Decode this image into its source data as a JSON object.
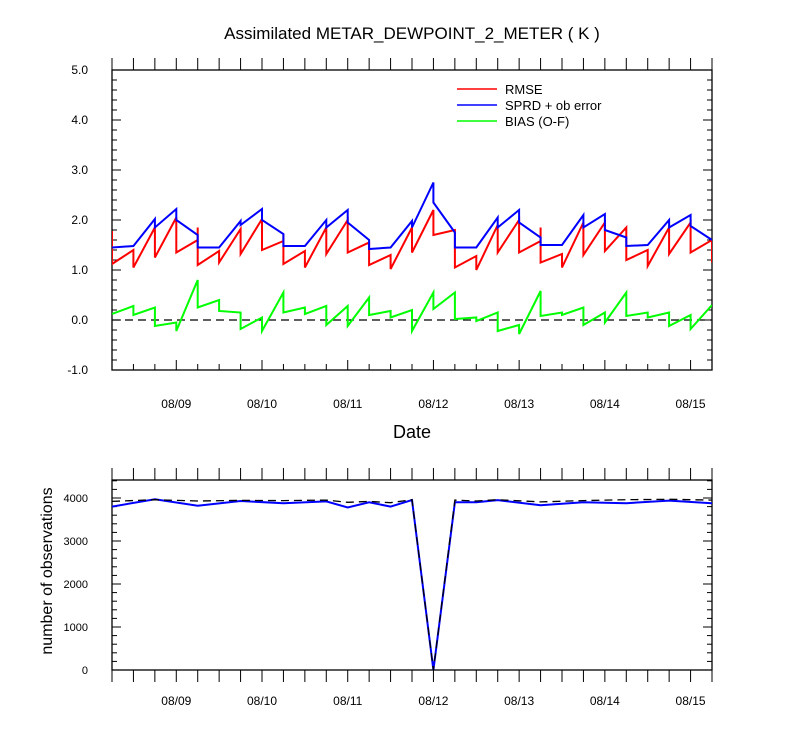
{
  "chart_data": [
    {
      "type": "line",
      "title": "Assimilated METAR_DEWPOINT_2_METER ( K )",
      "xlabel": "Date",
      "ylabel": "",
      "ylim": [
        -1.0,
        5.0
      ],
      "yticks": [
        "-1.0",
        "0.0",
        "1.0",
        "2.0",
        "3.0",
        "4.0",
        "5.0"
      ],
      "xlim": [
        "08/08 06:00",
        "08/15 06:00"
      ],
      "xticks": [
        "08/09",
        "08/10",
        "08/11",
        "08/12",
        "08/13",
        "08/14",
        "08/15"
      ],
      "legend_position": "top-right",
      "zero_line": "dashed",
      "series": [
        {
          "name": "RMSE",
          "color": "#ff0000",
          "points": [
            [
              0.0,
              1.78
            ],
            [
              0.0,
              1.12
            ],
            [
              0.25,
              1.4
            ],
            [
              0.25,
              1.05
            ],
            [
              0.5,
              1.85
            ],
            [
              0.5,
              1.25
            ],
            [
              0.75,
              2.05
            ],
            [
              0.75,
              1.35
            ],
            [
              1.0,
              1.6
            ],
            [
              1.0,
              1.85
            ],
            [
              1.0,
              1.1
            ],
            [
              1.25,
              1.38
            ],
            [
              1.25,
              1.15
            ],
            [
              1.5,
              1.82
            ],
            [
              1.5,
              1.32
            ],
            [
              1.75,
              2.02
            ],
            [
              1.75,
              1.4
            ],
            [
              2.0,
              1.58
            ],
            [
              2.0,
              1.72
            ],
            [
              2.0,
              1.12
            ],
            [
              2.25,
              1.38
            ],
            [
              2.25,
              1.05
            ],
            [
              2.5,
              1.85
            ],
            [
              2.5,
              1.32
            ],
            [
              2.75,
              2.0
            ],
            [
              2.75,
              1.35
            ],
            [
              3.0,
              1.55
            ],
            [
              3.0,
              1.1
            ],
            [
              3.25,
              1.3
            ],
            [
              3.25,
              1.02
            ],
            [
              3.5,
              1.85
            ],
            [
              3.5,
              1.35
            ],
            [
              3.75,
              2.2
            ],
            [
              3.75,
              1.7
            ],
            [
              4.0,
              1.8
            ],
            [
              4.0,
              1.05
            ],
            [
              4.25,
              1.28
            ],
            [
              4.25,
              1.0
            ],
            [
              4.5,
              1.9
            ],
            [
              4.5,
              1.35
            ],
            [
              4.75,
              2.0
            ],
            [
              4.75,
              1.35
            ],
            [
              5.0,
              1.58
            ],
            [
              5.0,
              1.85
            ],
            [
              5.0,
              1.15
            ],
            [
              5.25,
              1.32
            ],
            [
              5.25,
              1.05
            ],
            [
              5.5,
              1.95
            ],
            [
              5.5,
              1.3
            ],
            [
              5.75,
              1.95
            ],
            [
              5.75,
              1.38
            ],
            [
              6.0,
              1.85
            ],
            [
              6.0,
              1.2
            ],
            [
              6.25,
              1.4
            ],
            [
              6.25,
              1.08
            ],
            [
              6.5,
              1.85
            ],
            [
              6.5,
              1.32
            ],
            [
              6.75,
              1.95
            ],
            [
              6.75,
              1.35
            ],
            [
              7.0,
              1.6
            ],
            [
              7.0,
              1.15
            ]
          ]
        },
        {
          "name": "SPRD + ob error",
          "color": "#0000ff",
          "points": [
            [
              0.0,
              1.45
            ],
            [
              0.25,
              1.48
            ],
            [
              0.5,
              2.02
            ],
            [
              0.5,
              1.85
            ],
            [
              0.75,
              2.22
            ],
            [
              0.75,
              2.0
            ],
            [
              1.0,
              1.7
            ],
            [
              1.0,
              1.45
            ],
            [
              1.25,
              1.45
            ],
            [
              1.5,
              1.98
            ],
            [
              1.5,
              1.9
            ],
            [
              1.75,
              2.22
            ],
            [
              1.75,
              2.0
            ],
            [
              2.0,
              1.72
            ],
            [
              2.0,
              1.48
            ],
            [
              2.25,
              1.48
            ],
            [
              2.5,
              2.0
            ],
            [
              2.5,
              1.85
            ],
            [
              2.75,
              2.2
            ],
            [
              2.75,
              1.95
            ],
            [
              3.0,
              1.6
            ],
            [
              3.0,
              1.42
            ],
            [
              3.25,
              1.45
            ],
            [
              3.5,
              1.98
            ],
            [
              3.5,
              1.85
            ],
            [
              3.75,
              2.75
            ],
            [
              3.75,
              2.35
            ],
            [
              4.0,
              1.75
            ],
            [
              4.0,
              1.45
            ],
            [
              4.25,
              1.45
            ],
            [
              4.5,
              2.05
            ],
            [
              4.5,
              1.85
            ],
            [
              4.75,
              2.2
            ],
            [
              4.75,
              1.95
            ],
            [
              5.0,
              1.65
            ],
            [
              5.0,
              1.5
            ],
            [
              5.25,
              1.5
            ],
            [
              5.5,
              2.1
            ],
            [
              5.5,
              1.85
            ],
            [
              5.75,
              2.12
            ],
            [
              5.75,
              1.8
            ],
            [
              6.0,
              1.65
            ],
            [
              6.0,
              1.48
            ],
            [
              6.25,
              1.5
            ],
            [
              6.5,
              2.0
            ],
            [
              6.5,
              1.85
            ],
            [
              6.75,
              2.1
            ],
            [
              6.75,
              1.88
            ],
            [
              7.0,
              1.6
            ]
          ]
        },
        {
          "name": "BIAS (O-F)",
          "color": "#00ff00",
          "points": [
            [
              0.0,
              0.12
            ],
            [
              0.25,
              0.28
            ],
            [
              0.25,
              0.1
            ],
            [
              0.5,
              0.25
            ],
            [
              0.5,
              -0.12
            ],
            [
              0.75,
              -0.05
            ],
            [
              0.75,
              -0.22
            ],
            [
              1.0,
              0.8
            ],
            [
              1.0,
              0.25
            ],
            [
              1.25,
              0.4
            ],
            [
              1.25,
              0.18
            ],
            [
              1.5,
              0.15
            ],
            [
              1.5,
              -0.18
            ],
            [
              1.75,
              0.05
            ],
            [
              1.75,
              -0.22
            ],
            [
              2.0,
              0.55
            ],
            [
              2.0,
              0.15
            ],
            [
              2.25,
              0.25
            ],
            [
              2.25,
              0.12
            ],
            [
              2.5,
              0.28
            ],
            [
              2.5,
              -0.1
            ],
            [
              2.75,
              0.28
            ],
            [
              2.75,
              -0.12
            ],
            [
              3.0,
              0.45
            ],
            [
              3.0,
              0.1
            ],
            [
              3.25,
              0.18
            ],
            [
              3.25,
              0.05
            ],
            [
              3.5,
              0.2
            ],
            [
              3.5,
              -0.22
            ],
            [
              3.75,
              0.55
            ],
            [
              3.75,
              0.22
            ],
            [
              4.0,
              0.55
            ],
            [
              4.0,
              0.02
            ],
            [
              4.25,
              0.05
            ],
            [
              4.25,
              -0.02
            ],
            [
              4.5,
              0.15
            ],
            [
              4.5,
              -0.22
            ],
            [
              4.75,
              -0.1
            ],
            [
              4.75,
              -0.28
            ],
            [
              5.0,
              0.58
            ],
            [
              5.0,
              0.08
            ],
            [
              5.25,
              0.15
            ],
            [
              5.25,
              0.1
            ],
            [
              5.5,
              0.25
            ],
            [
              5.5,
              -0.1
            ],
            [
              5.75,
              0.15
            ],
            [
              5.75,
              -0.05
            ],
            [
              6.0,
              0.55
            ],
            [
              6.0,
              0.08
            ],
            [
              6.25,
              0.15
            ],
            [
              6.25,
              0.05
            ],
            [
              6.5,
              0.15
            ],
            [
              6.5,
              -0.12
            ],
            [
              6.75,
              0.1
            ],
            [
              6.75,
              -0.18
            ],
            [
              7.0,
              0.3
            ]
          ]
        }
      ]
    },
    {
      "type": "line",
      "title": "",
      "xlabel": "",
      "ylabel": "number of observations",
      "ylim": [
        0,
        4400
      ],
      "yticks": [
        "0",
        "1000",
        "2000",
        "3000",
        "4000"
      ],
      "xticks": [
        "08/09",
        "08/10",
        "08/11",
        "08/12",
        "08/13",
        "08/14",
        "08/15"
      ],
      "series": [
        {
          "name": "",
          "color": "#0000ff",
          "style": "solid",
          "points": [
            [
              0.0,
              3800
            ],
            [
              0.5,
              3970
            ],
            [
              1.0,
              3820
            ],
            [
              1.5,
              3930
            ],
            [
              2.0,
              3880
            ],
            [
              2.5,
              3920
            ],
            [
              2.75,
              3780
            ],
            [
              3.0,
              3900
            ],
            [
              3.25,
              3800
            ],
            [
              3.5,
              3950
            ],
            [
              3.75,
              0
            ],
            [
              4.0,
              3900
            ],
            [
              4.25,
              3900
            ],
            [
              4.5,
              3950
            ],
            [
              5.0,
              3830
            ],
            [
              5.5,
              3900
            ],
            [
              6.0,
              3880
            ],
            [
              6.5,
              3940
            ],
            [
              7.0,
              3880
            ]
          ]
        },
        {
          "name": "",
          "color": "#000000",
          "style": "dashed",
          "points": [
            [
              0.0,
              3920
            ],
            [
              0.5,
              3960
            ],
            [
              1.0,
              3930
            ],
            [
              1.5,
              3945
            ],
            [
              2.0,
              3940
            ],
            [
              2.5,
              3950
            ],
            [
              2.75,
              3900
            ],
            [
              3.0,
              3920
            ],
            [
              3.25,
              3890
            ],
            [
              3.5,
              3960
            ],
            [
              3.75,
              0
            ],
            [
              4.0,
              3950
            ],
            [
              4.25,
              3930
            ],
            [
              4.5,
              3960
            ],
            [
              5.0,
              3910
            ],
            [
              5.5,
              3940
            ],
            [
              6.0,
              3960
            ],
            [
              6.5,
              3970
            ],
            [
              7.0,
              3950
            ]
          ]
        }
      ]
    }
  ]
}
